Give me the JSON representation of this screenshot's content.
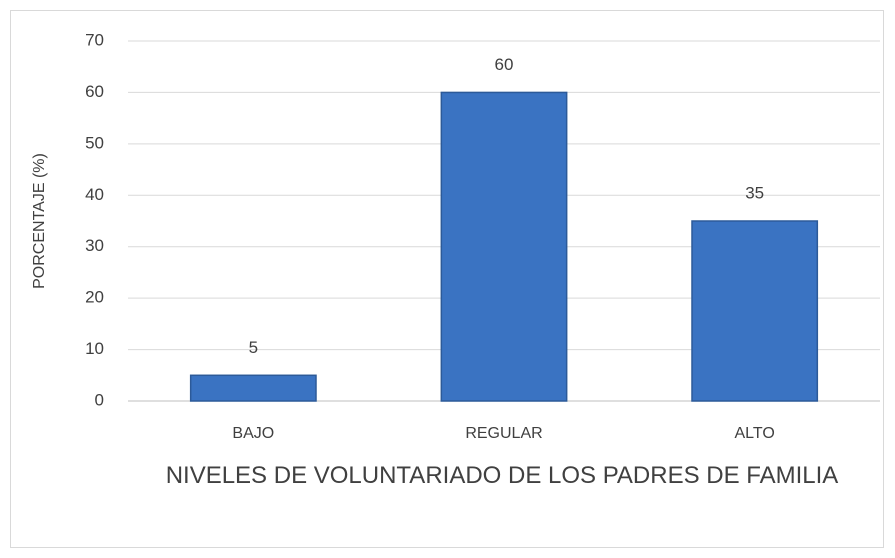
{
  "chart_data": {
    "type": "bar",
    "categories": [
      "BAJO",
      "REGULAR",
      "ALTO"
    ],
    "values": [
      5,
      60,
      35
    ],
    "color": "#3a73c2",
    "ylim": [
      0,
      70
    ],
    "yticks": [
      0,
      10,
      20,
      30,
      40,
      50,
      60,
      70
    ],
    "grid": true,
    "y_label": "PORCENTAJE (%)",
    "x_label": "NIVELES DE VOLUNTARIADO DE LOS PADRES DE FAMILIA"
  }
}
